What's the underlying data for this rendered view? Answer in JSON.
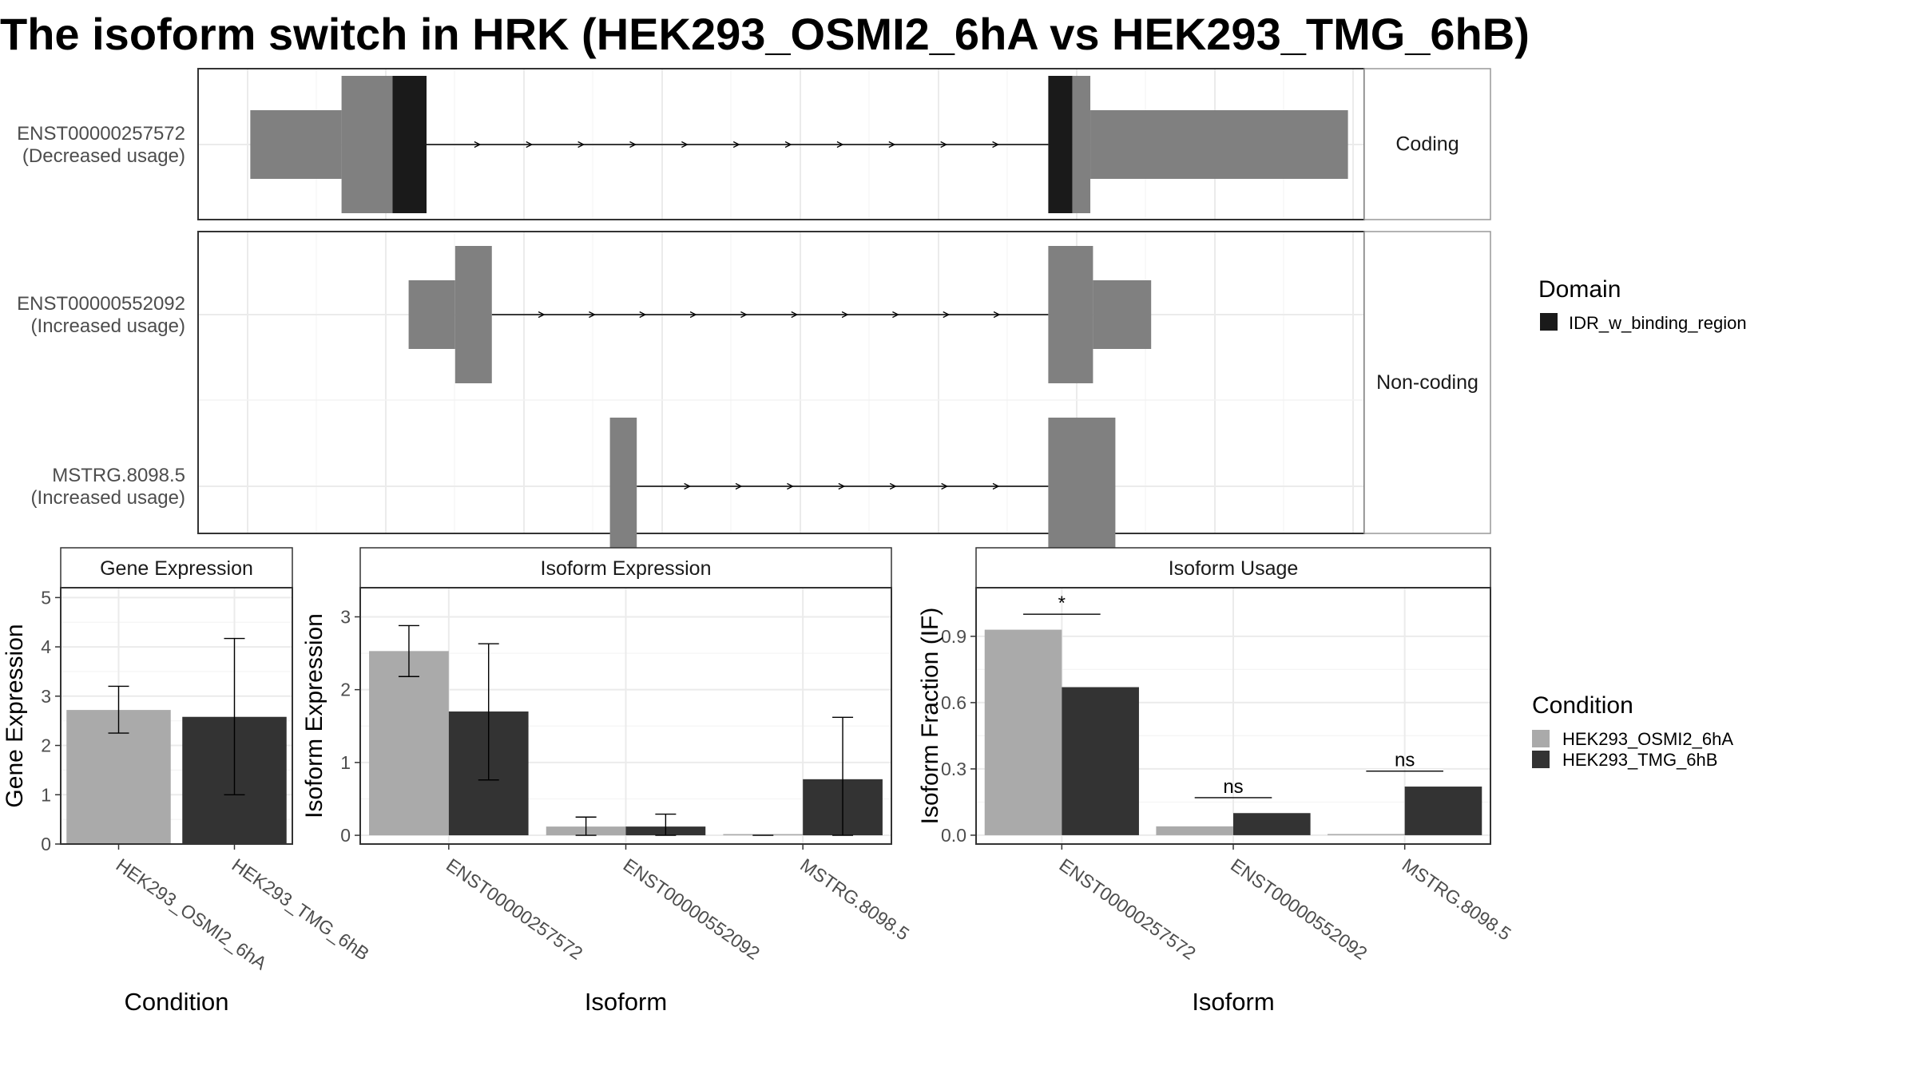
{
  "title": "The isoform switch in HRK (HEK293_OSMI2_6hA vs HEK293_TMG_6hB)",
  "colors": {
    "exon": "#808080",
    "domain": "#1a1a1a",
    "cond_a": "#aaaaaa",
    "cond_b": "#333333",
    "panel_border": "#333333",
    "strip_fill": "#ffffff",
    "grid": "#ebebeb"
  },
  "facets": {
    "coding": "Coding",
    "noncoding": "Non-coding"
  },
  "legends": {
    "domain": {
      "title": "Domain",
      "items": [
        {
          "label": "IDR_w_binding_region",
          "color": "#1a1a1a"
        }
      ]
    },
    "condition": {
      "title": "Condition",
      "items": [
        {
          "label": "HEK293_OSMI2_6hA",
          "color": "#aaaaaa"
        },
        {
          "label": "HEK293_TMG_6hB",
          "color": "#333333"
        }
      ]
    }
  },
  "chart_data": [
    {
      "type": "gene-structure",
      "transcripts": [
        {
          "id": "ENST00000257572",
          "note": "(Decreased usage)",
          "facet": "Coding",
          "exons": [
            {
              "start": 0.03,
              "end": 1.05,
              "kind": "utr"
            },
            {
              "start": 1.05,
              "end": 1.62,
              "kind": "cds"
            },
            {
              "start": 1.62,
              "end": 2.0,
              "kind": "domain"
            },
            {
              "start": 8.95,
              "end": 9.22,
              "kind": "domain"
            },
            {
              "start": 9.22,
              "end": 9.42,
              "kind": "cds"
            },
            {
              "start": 9.42,
              "end": 12.3,
              "kind": "utr"
            }
          ],
          "intron": [
            2.0,
            8.95
          ]
        },
        {
          "id": "ENST00000552092",
          "note": "(Increased usage)",
          "facet": "Non-coding",
          "exons": [
            {
              "start": 1.8,
              "end": 2.32,
              "kind": "utr"
            },
            {
              "start": 2.32,
              "end": 2.73,
              "kind": "cds"
            },
            {
              "start": 8.95,
              "end": 9.45,
              "kind": "cds"
            },
            {
              "start": 9.45,
              "end": 10.1,
              "kind": "utr"
            }
          ],
          "intron": [
            2.73,
            8.95
          ]
        },
        {
          "id": "MSTRG.8098.5",
          "note": "(Increased usage)",
          "facet": "Non-coding",
          "exons": [
            {
              "start": 4.05,
              "end": 4.35,
              "kind": "cds"
            },
            {
              "start": 8.95,
              "end": 9.7,
              "kind": "cds"
            }
          ],
          "intron": [
            4.35,
            8.95
          ]
        }
      ]
    },
    {
      "type": "bar",
      "title": "Gene Expression",
      "xlabel": "Condition",
      "ylabel": "Gene Expression",
      "categories": [
        "HEK293_OSMI2_6hA",
        "HEK293_TMG_6hB"
      ],
      "values": [
        2.72,
        2.58
      ],
      "errors": [
        [
          2.25,
          3.2
        ],
        [
          1.0,
          4.17
        ]
      ],
      "ylim": [
        0,
        5.2
      ],
      "yticks": [
        0,
        1,
        2,
        3,
        4,
        5
      ]
    },
    {
      "type": "bar",
      "title": "Isoform Expression",
      "xlabel": "Isoform",
      "ylabel": "Isoform Expression",
      "categories": [
        "ENST00000257572",
        "ENST00000552092",
        "MSTRG.8098.5"
      ],
      "series": [
        {
          "name": "HEK293_OSMI2_6hA",
          "values": [
            2.53,
            0.12,
            0.0
          ],
          "errors": [
            [
              2.18,
              2.88
            ],
            [
              0.0,
              0.25
            ],
            [
              0.0,
              0.0
            ]
          ]
        },
        {
          "name": "HEK293_TMG_6hB",
          "values": [
            1.7,
            0.12,
            0.77
          ],
          "errors": [
            [
              0.76,
              2.63
            ],
            [
              0.0,
              0.29
            ],
            [
              0.0,
              1.62
            ]
          ]
        }
      ],
      "ylim": [
        -0.12,
        3.4
      ],
      "yticks": [
        0,
        1,
        2,
        3
      ]
    },
    {
      "type": "bar",
      "title": "Isoform Usage",
      "xlabel": "Isoform",
      "ylabel": "Isoform Fraction (IF)",
      "categories": [
        "ENST00000257572",
        "ENST00000552092",
        "MSTRG.8098.5"
      ],
      "series": [
        {
          "name": "HEK293_OSMI2_6hA",
          "values": [
            0.93,
            0.04,
            0.0
          ]
        },
        {
          "name": "HEK293_TMG_6hB",
          "values": [
            0.67,
            0.1,
            0.22
          ]
        }
      ],
      "significance": [
        "*",
        "ns",
        "ns"
      ],
      "ylim": [
        -0.04,
        1.12
      ],
      "yticks": [
        0.0,
        0.3,
        0.6,
        0.9
      ]
    }
  ]
}
